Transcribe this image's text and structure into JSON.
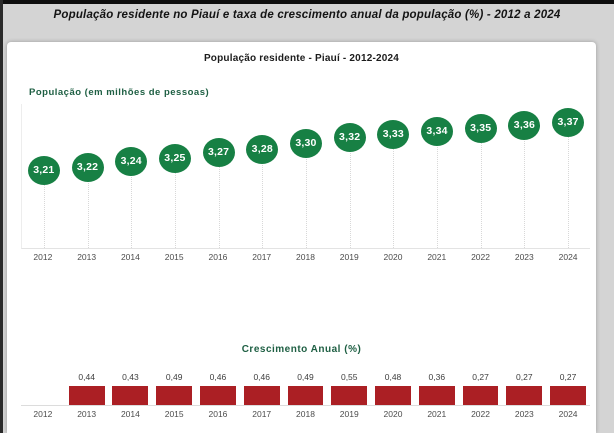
{
  "page": {
    "title": "População residente no Piauí e taxa de crescimento anual da população (%) - 2012 a 2024"
  },
  "colors": {
    "background_gray": "#d4d4d4",
    "card_white": "#ffffff",
    "marker_green": "#178044",
    "label_green": "#1e5f43",
    "bar_red": "#ab1f24",
    "axis_gray": "#e3e3e3",
    "year_text": "#4c4c4c"
  },
  "chart_data": [
    {
      "type": "line",
      "style": "lollipop-markers",
      "title": "População residente - Piauí - 2012-2024",
      "ylabel": "População (em milhões de pessoas)",
      "xlabel": "",
      "categories": [
        "2012",
        "2013",
        "2014",
        "2015",
        "2016",
        "2017",
        "2018",
        "2019",
        "2020",
        "2021",
        "2022",
        "2023",
        "2024"
      ],
      "values": [
        3.21,
        3.22,
        3.24,
        3.25,
        3.27,
        3.28,
        3.3,
        3.32,
        3.33,
        3.34,
        3.35,
        3.36,
        3.37
      ],
      "labels": [
        "3,21",
        "3,22",
        "3,24",
        "3,25",
        "3,27",
        "3,28",
        "3,30",
        "3,32",
        "3,33",
        "3,34",
        "3,35",
        "3,36",
        "3,37"
      ],
      "ylim": [
        3.18,
        3.42
      ],
      "grid": false,
      "legend": "none",
      "marker_color": "#178044"
    },
    {
      "type": "bar",
      "title": "Crescimento Anual (%)",
      "xlabel": "",
      "ylabel": "",
      "categories": [
        "2012",
        "2013",
        "2014",
        "2015",
        "2016",
        "2017",
        "2018",
        "2019",
        "2020",
        "2021",
        "2022",
        "2023",
        "2024"
      ],
      "values": [
        null,
        0.44,
        0.43,
        0.49,
        0.46,
        0.46,
        0.49,
        0.55,
        0.48,
        0.36,
        0.27,
        0.27,
        0.27
      ],
      "labels": [
        "",
        "0,44",
        "0,43",
        "0,49",
        "0,46",
        "0,46",
        "0,49",
        "0,55",
        "0,48",
        "0,36",
        "0,27",
        "0,27",
        "0,27"
      ],
      "grid": false,
      "legend": "none",
      "bar_color": "#ab1f24",
      "bars_rendered_equal_height": true
    }
  ]
}
